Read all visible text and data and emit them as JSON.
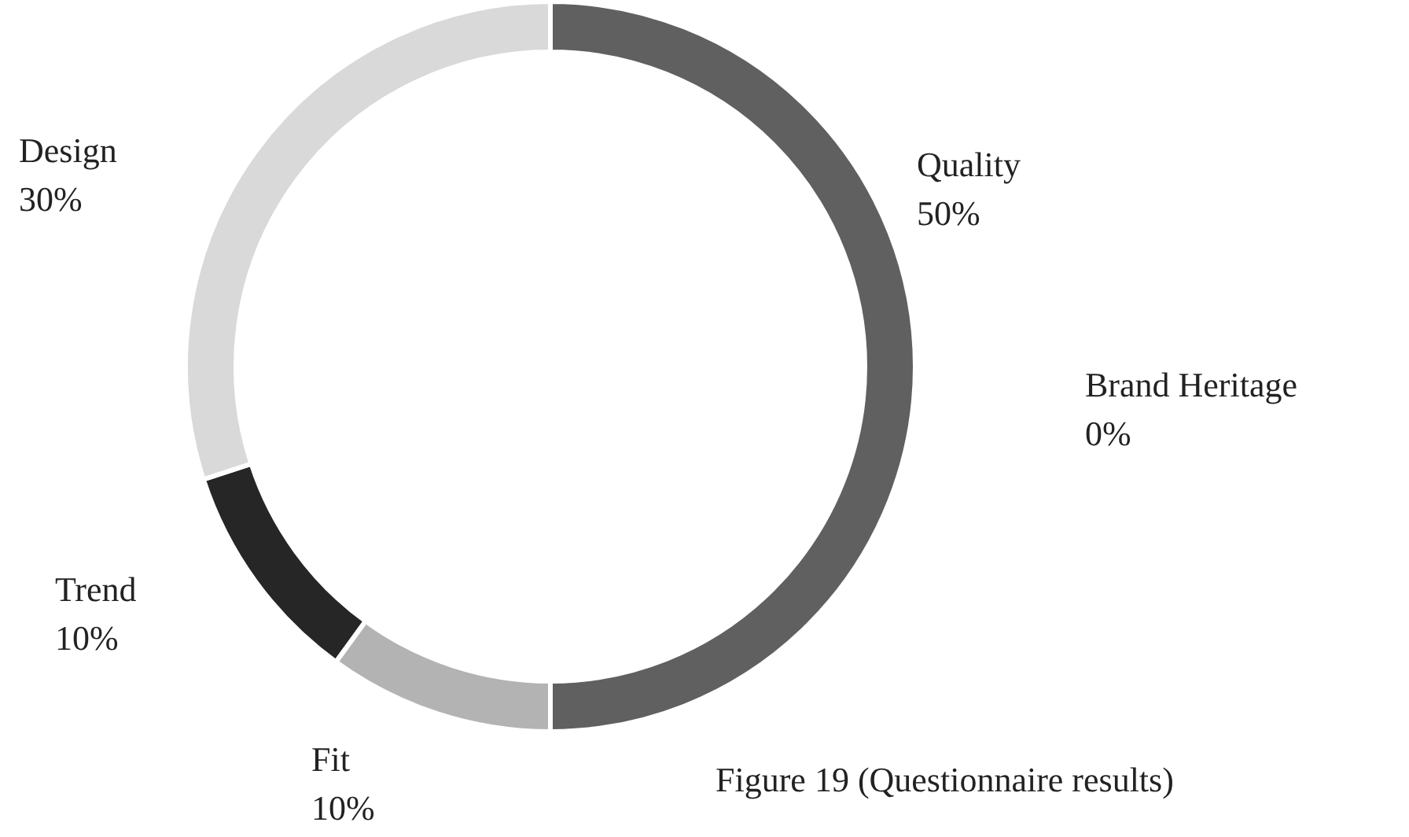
{
  "chart_data": {
    "type": "donut",
    "categories": [
      "Quality",
      "Brand Heritage",
      "Fit",
      "Trend",
      "Design"
    ],
    "values": [
      50,
      0,
      10,
      10,
      30
    ],
    "value_labels": [
      "50%",
      "0%",
      "10%",
      "10%",
      "30%"
    ],
    "colors": [
      "#606060",
      "#8c8c8c",
      "#b3b3b3",
      "#262626",
      "#d9d9d9"
    ],
    "annotations": [
      "Figure 19 (Questionnaire results)"
    ],
    "legend": false
  }
}
